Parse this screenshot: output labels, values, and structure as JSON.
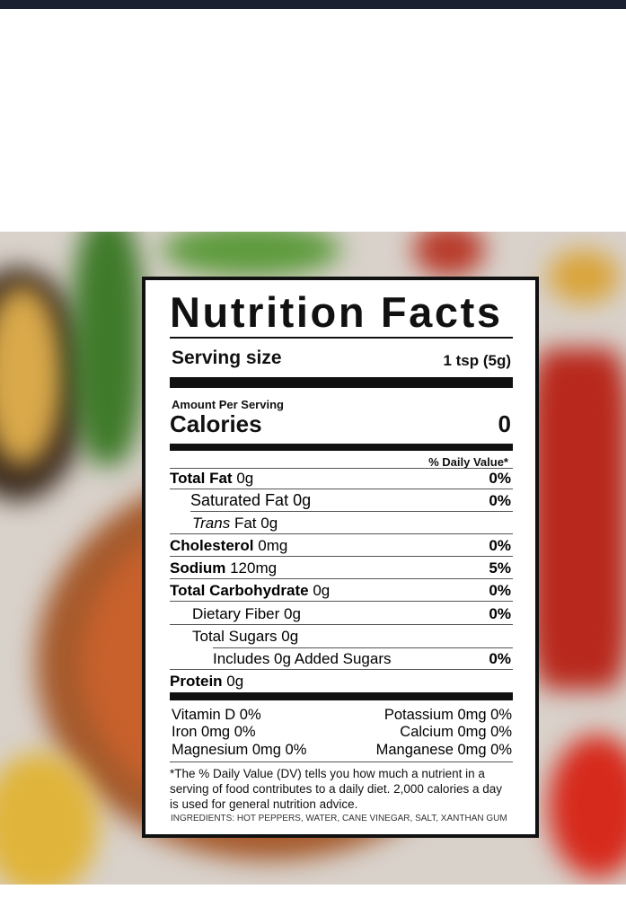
{
  "label": {
    "title": "Nutrition Facts",
    "serving_label": "Serving size",
    "serving_value": "1 tsp (5g)",
    "amount_per_serving": "Amount Per Serving",
    "calories_label": "Calories",
    "calories_value": "0",
    "dv_header": "% Daily Value*",
    "rows": [
      {
        "name": "Total Fat",
        "amount": "0g",
        "dv": "0%"
      },
      {
        "name": "Saturated Fat",
        "amount": "0g",
        "dv": "0%"
      },
      {
        "name_italic": "Trans",
        "name": "Fat",
        "amount": "0g"
      },
      {
        "name": "Cholesterol",
        "amount": "0mg",
        "dv": "0%"
      },
      {
        "name": "Sodium",
        "amount": "120mg",
        "dv": "5%"
      },
      {
        "name": "Total Carbohydrate",
        "amount": "0g",
        "dv": "0%"
      },
      {
        "name": "Dietary Fiber",
        "amount": "0g",
        "dv": "0%"
      },
      {
        "name": "Total Sugars",
        "amount": "0g"
      },
      {
        "name": "Includes 0g Added Sugars",
        "dv": "0%"
      },
      {
        "name": "Protein",
        "amount": "0g"
      }
    ],
    "vitamins": [
      [
        "Vitamin D 0%",
        "Potassium 0mg 0%"
      ],
      [
        "Iron 0mg 0%",
        "Calcium 0mg 0%"
      ],
      [
        "Magnesium 0mg 0%",
        "Manganese 0mg 0%"
      ]
    ],
    "footnote": "*The % Daily Value (DV) tells you how much a nutrient in a serving of food contributes to a daily diet. 2,000 calories a day is used for general nutrition advice.",
    "ingredients": "INGREDIENTS: HOT PEPPERS, WATER, CANE VINEGAR, SALT, XANTHAN GUM"
  }
}
